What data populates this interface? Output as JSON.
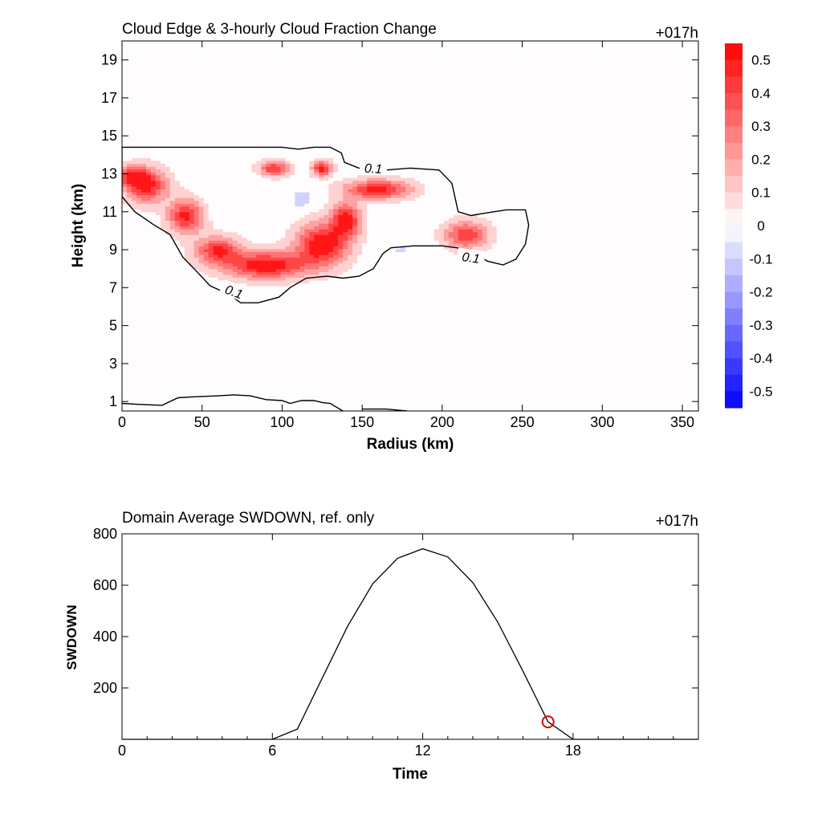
{
  "chart_data": [
    {
      "type": "heatmap",
      "title": "Cloud Edge & 3-hourly Cloud Fraction Change",
      "time_label": "+017h",
      "xlabel": "Radius (km)",
      "ylabel": "Height (km)",
      "xlim": [
        0,
        360
      ],
      "ylim": [
        0.5,
        20
      ],
      "xticks": [
        "0",
        "50",
        "100",
        "150",
        "200",
        "250",
        "300",
        "350"
      ],
      "yticks": [
        "1",
        "3",
        "5",
        "7",
        "9",
        "11",
        "13",
        "15",
        "17",
        "19"
      ],
      "colorbar": {
        "ticks": [
          "0.5",
          "0.4",
          "0.3",
          "0.2",
          "0.1",
          "0",
          "-0.1",
          "-0.2",
          "-0.3",
          "-0.4",
          "-0.5"
        ],
        "range": [
          -0.55,
          0.55
        ],
        "colors": {
          "positive": "#ff0000",
          "negative": "#0000ff",
          "zero": "#ffffff"
        }
      },
      "contour_label": "0.1",
      "blobs": [
        {
          "r": 15,
          "z": 12.4,
          "rx": 13,
          "rz": 0.9,
          "v": 0.5
        },
        {
          "r": 5,
          "z": 12.9,
          "rx": 10,
          "rz": 0.5,
          "v": 0.35
        },
        {
          "r": 40,
          "z": 10.8,
          "rx": 11,
          "rz": 0.9,
          "v": 0.5
        },
        {
          "r": 60,
          "z": 9.0,
          "rx": 14,
          "rz": 0.7,
          "v": 0.45
        },
        {
          "r": 90,
          "z": 8.2,
          "rx": 25,
          "rz": 0.7,
          "v": 0.55
        },
        {
          "r": 125,
          "z": 9.3,
          "rx": 16,
          "rz": 1.1,
          "v": 0.55
        },
        {
          "r": 140,
          "z": 10.6,
          "rx": 9,
          "rz": 0.9,
          "v": 0.5
        },
        {
          "r": 160,
          "z": 12.2,
          "rx": 20,
          "rz": 0.5,
          "v": 0.5
        },
        {
          "r": 95,
          "z": 13.3,
          "rx": 9,
          "rz": 0.4,
          "v": 0.45
        },
        {
          "r": 125,
          "z": 13.3,
          "rx": 6,
          "rz": 0.4,
          "v": 0.5
        },
        {
          "r": 215,
          "z": 9.8,
          "rx": 13,
          "rz": 0.7,
          "v": 0.45
        },
        {
          "r": 112,
          "z": 11.7,
          "rx": 5,
          "rz": 0.4,
          "v": -0.15
        },
        {
          "r": 175,
          "z": 9.0,
          "rx": 8,
          "rz": 0.3,
          "v": -0.06
        },
        {
          "r": 60,
          "z": 11.3,
          "rx": 30,
          "rz": 1.0,
          "v": -0.03
        }
      ],
      "contour_upper": [
        [
          0,
          14.4
        ],
        [
          50,
          14.4
        ],
        [
          100,
          14.4
        ],
        [
          110,
          14.3
        ],
        [
          120,
          14.4
        ],
        [
          130,
          14.4
        ],
        [
          137,
          14.1
        ],
        [
          139,
          13.6
        ],
        [
          148,
          13.3
        ],
        [
          165,
          13.2
        ],
        [
          180,
          13.3
        ],
        [
          198,
          13.2
        ],
        [
          206,
          12.5
        ],
        [
          210,
          11.0
        ],
        [
          218,
          10.8
        ],
        [
          225,
          10.9
        ],
        [
          240,
          11.1
        ],
        [
          252,
          11.1
        ],
        [
          254,
          10.3
        ],
        [
          252,
          9.3
        ],
        [
          246,
          8.5
        ],
        [
          238,
          8.2
        ],
        [
          228,
          8.4
        ],
        [
          218,
          9.0
        ],
        [
          200,
          9.2
        ],
        [
          182,
          9.2
        ],
        [
          168,
          9.1
        ],
        [
          163,
          8.8
        ],
        [
          157,
          8.0
        ],
        [
          148,
          7.6
        ],
        [
          138,
          7.5
        ],
        [
          128,
          7.6
        ],
        [
          115,
          7.5
        ],
        [
          105,
          7.0
        ],
        [
          98,
          6.5
        ],
        [
          85,
          6.2
        ],
        [
          74,
          6.2
        ],
        [
          68,
          6.6
        ],
        [
          55,
          7.1
        ],
        [
          45,
          8.0
        ],
        [
          38,
          8.6
        ],
        [
          30,
          9.8
        ],
        [
          20,
          10.3
        ],
        [
          8,
          11.0
        ],
        [
          0,
          11.8
        ]
      ],
      "contour_lower": [
        [
          0,
          0.9
        ],
        [
          10,
          0.85
        ],
        [
          25,
          0.8
        ],
        [
          35,
          1.2
        ],
        [
          45,
          1.25
        ],
        [
          60,
          1.3
        ],
        [
          70,
          1.35
        ],
        [
          80,
          1.3
        ],
        [
          90,
          1.1
        ],
        [
          100,
          1.05
        ],
        [
          105,
          0.9
        ],
        [
          112,
          1.05
        ],
        [
          120,
          1.05
        ],
        [
          125,
          0.95
        ],
        [
          130,
          0.9
        ],
        [
          138,
          0.5
        ]
      ],
      "contour_lower2": [
        [
          150,
          0.6
        ],
        [
          165,
          0.6
        ],
        [
          178,
          0.5
        ]
      ],
      "contour_labels": [
        {
          "r": 70,
          "z": 6.8,
          "angle": 20
        },
        {
          "r": 157,
          "z": 13.3,
          "angle": 4
        },
        {
          "r": 218,
          "z": 8.6,
          "angle": 8
        }
      ]
    },
    {
      "type": "line",
      "title": "Domain Average SWDOWN, ref. only",
      "time_label": "+017h",
      "xlabel": "Time",
      "ylabel": "SWDOWN",
      "xlim": [
        0,
        23
      ],
      "ylim": [
        0,
        800
      ],
      "xticks": [
        "0",
        "6",
        "12",
        "18"
      ],
      "yticks": [
        "200",
        "400",
        "600",
        "800"
      ],
      "x": [
        0,
        1,
        2,
        3,
        4,
        5,
        6,
        7,
        8,
        9,
        10,
        11,
        12,
        13,
        14,
        15,
        16,
        17,
        18,
        19,
        20,
        21,
        22,
        23
      ],
      "y": [
        0,
        0,
        0,
        0,
        0,
        0,
        0,
        40,
        240,
        440,
        605,
        705,
        742,
        710,
        610,
        455,
        265,
        68,
        0,
        0,
        0,
        0,
        0,
        0
      ],
      "marker": {
        "x": 17,
        "y": 68,
        "color": "#dd0000"
      }
    }
  ]
}
